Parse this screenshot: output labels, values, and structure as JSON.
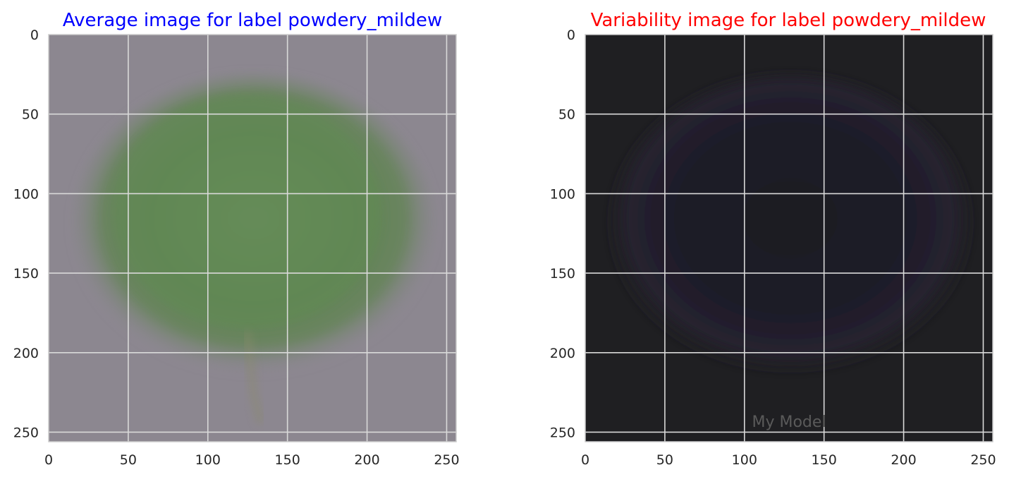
{
  "chart_data": [
    {
      "type": "heatmap",
      "title": "Average image for label powdery_mildew",
      "title_color": "#0000ff",
      "xlabel": "",
      "ylabel": "",
      "xlim": [
        0,
        256
      ],
      "ylim": [
        256,
        0
      ],
      "xticks": [
        0,
        50,
        100,
        150,
        200,
        250
      ],
      "yticks": [
        0,
        50,
        100,
        150,
        200,
        250
      ],
      "xtick_labels": [
        "0",
        "50",
        "100",
        "150",
        "200",
        "250"
      ],
      "ytick_labels": [
        "0",
        "50",
        "100",
        "150",
        "200",
        "250"
      ],
      "grid": true,
      "image_colors": {
        "background": "#8c8790",
        "leaf": "#5f8552",
        "leaf_edge": "#6d8462"
      }
    },
    {
      "type": "heatmap",
      "title": "Variability image for label powdery_mildew",
      "title_color": "#ff0000",
      "xlabel": "",
      "ylabel": "",
      "xlim": [
        0,
        256
      ],
      "ylim": [
        256,
        0
      ],
      "xticks": [
        0,
        50,
        100,
        150,
        200,
        250
      ],
      "yticks": [
        0,
        50,
        100,
        150,
        200,
        250
      ],
      "xtick_labels": [
        "0",
        "50",
        "100",
        "150",
        "200",
        "250"
      ],
      "ytick_labels": [
        "0",
        "50",
        "100",
        "150",
        "200",
        "250"
      ],
      "grid": true,
      "image_colors": {
        "background": "#1f1f22",
        "leaf": "#1c1a26",
        "leaf_edge": "#2a2434"
      },
      "annotation": "My Model"
    }
  ]
}
